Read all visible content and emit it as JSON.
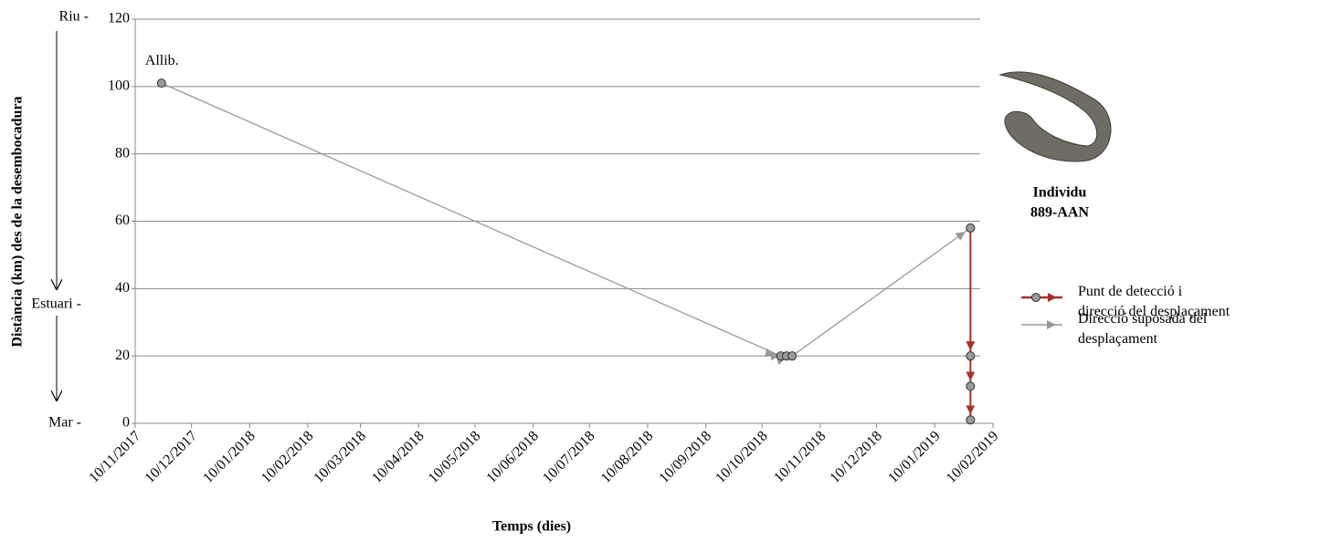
{
  "chart_data": {
    "type": "line",
    "y_label": "Distància (km) des de la desembocadura",
    "x_label": "Temps (dies)",
    "y_side_labels": [
      "Riu -",
      "Estuari -",
      "Mar -"
    ],
    "annotation": "Allib.",
    "legend_title": [
      "Individu",
      "889-AAN"
    ],
    "xlim": [
      "10/11/2017",
      "10/02/2019"
    ],
    "xticks": [
      "10/11/2017",
      "10/12/2017",
      "10/01/2018",
      "10/02/2018",
      "10/03/2018",
      "10/04/2018",
      "10/05/2018",
      "10/06/2018",
      "10/07/2018",
      "10/08/2018",
      "10/09/2018",
      "10/10/2018",
      "10/11/2018",
      "10/12/2018",
      "10/01/2019",
      "10/02/2019"
    ],
    "ylim": [
      0,
      120
    ],
    "yticks": [
      0,
      20,
      40,
      60,
      80,
      100,
      120
    ],
    "grid": true,
    "series": [
      {
        "name": "Punt de detecció i direcció del desplaçament",
        "color": "#a5322d",
        "x": [
          "29/01/2019",
          "29/01/2019",
          "29/01/2019",
          "29/01/2019"
        ],
        "values": [
          58,
          20,
          11,
          1
        ]
      },
      {
        "name": "Direcció suposada del desplaçament",
        "color": "#999999",
        "x": [
          "24/11/2017",
          "20/10/2018",
          "23/10/2018",
          "26/10/2018",
          "29/01/2019"
        ],
        "values": [
          101,
          20,
          20,
          20,
          58
        ]
      }
    ]
  }
}
